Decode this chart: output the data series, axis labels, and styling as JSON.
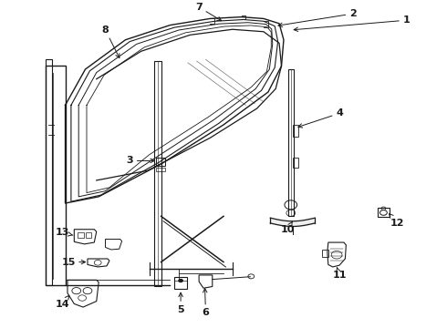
{
  "bg_color": "#ffffff",
  "line_color": "#1a1a1a",
  "font_size": 8,
  "dpi": 100,
  "figsize": [
    4.9,
    3.6
  ]
}
